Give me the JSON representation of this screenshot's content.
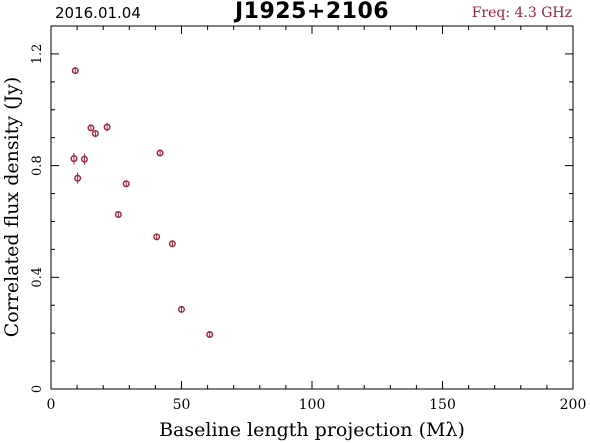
{
  "header": {
    "date": "2016.01.04",
    "source": "J1925+2106",
    "freq": "Freq: 4.3 GHz"
  },
  "colors": {
    "marker": "#a0203a",
    "freq_text": "#a0203a",
    "axes": "#000000"
  },
  "chart_data": {
    "type": "scatter",
    "xlabel": "Baseline length projection (Mλ)",
    "ylabel": "Correlated flux density (Jy)",
    "xlim": [
      0,
      200
    ],
    "ylim": [
      0,
      1.3
    ],
    "x_ticks": [
      0,
      50,
      100,
      150,
      200
    ],
    "x_tick_labels": [
      "0",
      "50",
      "100",
      "150",
      "200"
    ],
    "y_ticks": [
      0,
      0.4,
      0.8,
      1.2
    ],
    "y_tick_labels": [
      "0",
      "0.4",
      "0.8",
      "1.2"
    ],
    "grid": false,
    "series": [
      {
        "points": [
          {
            "x": 9.3,
            "y": 1.14,
            "err": 0.01
          },
          {
            "x": 8.8,
            "y": 0.825,
            "err": 0.02
          },
          {
            "x": 10.2,
            "y": 0.755,
            "err": 0.02
          },
          {
            "x": 12.8,
            "y": 0.823,
            "err": 0.02
          },
          {
            "x": 15.3,
            "y": 0.935,
            "err": 0.01
          },
          {
            "x": 17.0,
            "y": 0.915,
            "err": 0.01
          },
          {
            "x": 21.5,
            "y": 0.938,
            "err": 0.015
          },
          {
            "x": 25.8,
            "y": 0.625,
            "err": 0.01
          },
          {
            "x": 28.8,
            "y": 0.735,
            "err": 0.01
          },
          {
            "x": 40.5,
            "y": 0.545,
            "err": 0.01
          },
          {
            "x": 41.8,
            "y": 0.845,
            "err": 0.01
          },
          {
            "x": 46.5,
            "y": 0.52,
            "err": 0.01
          },
          {
            "x": 50.0,
            "y": 0.285,
            "err": 0.01
          },
          {
            "x": 60.8,
            "y": 0.195,
            "err": 0.01
          }
        ]
      }
    ]
  }
}
